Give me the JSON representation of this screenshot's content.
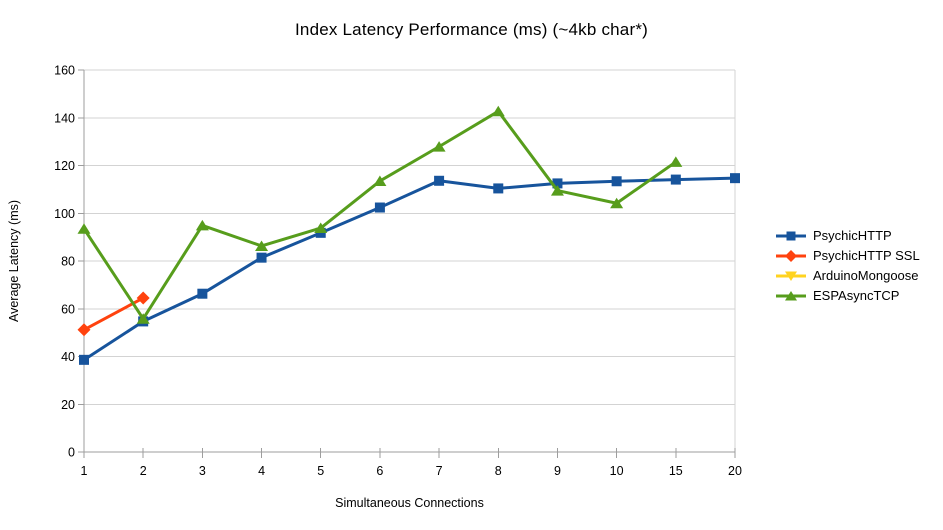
{
  "chart_data": {
    "type": "line",
    "title": "Index Latency Performance (ms) (~4kb char*)",
    "xlabel": "Simultaneous Connections",
    "ylabel": "Average Latency (ms)",
    "categories": [
      "1",
      "2",
      "3",
      "4",
      "5",
      "6",
      "7",
      "8",
      "9",
      "10",
      "15",
      "20"
    ],
    "ylim": [
      0,
      160
    ],
    "yticks": [
      0,
      20,
      40,
      60,
      80,
      100,
      120,
      140,
      160
    ],
    "grid": true,
    "legend_position": "right",
    "series": [
      {
        "name": "PsychicHTTP",
        "color": "#17549C",
        "marker": "square",
        "values": [
          38.6,
          54.7,
          66.3,
          81.4,
          91.8,
          102.4,
          113.6,
          110.4,
          112.5,
          113.4,
          114.1,
          114.7
        ]
      },
      {
        "name": "PsychicHTTP SSL",
        "color": "#FF420E",
        "marker": "diamond",
        "values": [
          51.2,
          64.5,
          null,
          null,
          null,
          null,
          null,
          null,
          null,
          null,
          null,
          null
        ]
      },
      {
        "name": "ArduinoMongoose",
        "color": "#FFD320",
        "marker": "triangle-down",
        "values": [
          null,
          null,
          null,
          null,
          null,
          null,
          null,
          null,
          null,
          null,
          null,
          null
        ]
      },
      {
        "name": "ESPAsyncTCP",
        "color": "#579D1C",
        "marker": "triangle-up",
        "values": [
          93.5,
          55.8,
          94.9,
          86.3,
          93.8,
          113.5,
          127.9,
          142.7,
          109.5,
          104.2,
          121.5,
          null
        ]
      }
    ]
  },
  "style": {
    "grid_color": "#d3d3d3",
    "axis_color": "#9d9d9d",
    "text_color": "#000000",
    "background": "#ffffff"
  }
}
